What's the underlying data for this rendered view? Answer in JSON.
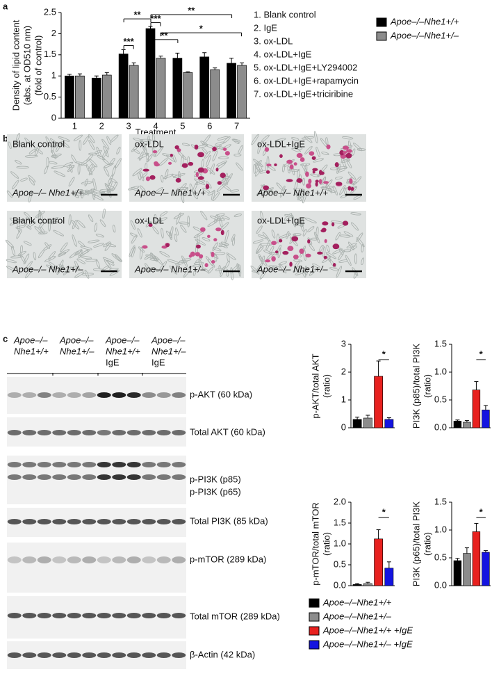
{
  "panel_labels": [
    "a",
    "b",
    "c"
  ],
  "chart_data": [
    {
      "type": "bar",
      "xlabel": "Treatment",
      "ylabel": [
        "Density of lipid content",
        "(abs. at OD510 nm)",
        "(fold of control)"
      ],
      "categories": [
        "1",
        "2",
        "3",
        "4",
        "5",
        "6",
        "7"
      ],
      "ylim": [
        0,
        2.5
      ],
      "yticks": [
        0,
        0.5,
        1,
        1.5,
        2,
        2.5
      ],
      "series": [
        {
          "name": "Apoe–/–Nhe1+/+",
          "color": "#000000",
          "values": [
            1.0,
            0.95,
            1.52,
            2.12,
            1.42,
            1.45,
            1.3
          ],
          "errors": [
            0.04,
            0.05,
            0.1,
            0.05,
            0.12,
            0.1,
            0.12
          ]
        },
        {
          "name": "Apoe–/–Nhe1+/–",
          "color": "#8c8c8c",
          "values": [
            1.0,
            1.02,
            1.25,
            1.42,
            1.08,
            1.15,
            1.25
          ],
          "errors": [
            0.05,
            0.06,
            0.06,
            0.05,
            0.02,
            0.04,
            0.06
          ]
        }
      ],
      "annotations": [
        "**",
        "***",
        "***",
        "**",
        "**",
        "*"
      ]
    },
    {
      "type": "bar",
      "ylabel": [
        "p-AKT/total AKT",
        "(ratio)"
      ],
      "colors": [
        "#000000",
        "#8c8c8c",
        "#e8211f",
        "#1414e0"
      ],
      "values": [
        0.3,
        0.35,
        1.85,
        0.3
      ],
      "errors": [
        0.08,
        0.1,
        0.55,
        0.06
      ],
      "ylim": [
        0,
        3
      ],
      "yticks": [
        0,
        1,
        2,
        3
      ],
      "annotations": [
        "*"
      ]
    },
    {
      "type": "bar",
      "ylabel": [
        "PI3K (p85)/total PI3K",
        "(ratio)"
      ],
      "colors": [
        "#000000",
        "#8c8c8c",
        "#e8211f",
        "#1414e0"
      ],
      "values": [
        0.12,
        0.1,
        0.68,
        0.32
      ],
      "errors": [
        0.02,
        0.03,
        0.15,
        0.08
      ],
      "ylim": [
        0,
        1.5
      ],
      "yticks": [
        {
          "value": 0,
          "label": "0.0"
        },
        0.5,
        {
          "value": 1,
          "label": "1.0"
        },
        1.5
      ],
      "annotations": [
        "*"
      ]
    },
    {
      "type": "bar",
      "ylabel": [
        "p-mTOR/total mTOR",
        "(ratio)"
      ],
      "colors": [
        "#000000",
        "#8c8c8c",
        "#e8211f",
        "#1414e0"
      ],
      "values": [
        0.03,
        0.05,
        1.12,
        0.42
      ],
      "errors": [
        0.02,
        0.03,
        0.22,
        0.15
      ],
      "ylim": [
        0,
        2
      ],
      "yticks": [
        {
          "value": 0,
          "label": "0.0"
        },
        0.5,
        {
          "value": 1,
          "label": "1.0"
        },
        1.5,
        {
          "value": 2,
          "label": "2.0"
        }
      ],
      "annotations": [
        "*"
      ]
    },
    {
      "type": "bar",
      "ylabel": [
        "PI3K (p65)/total PI3K",
        "(ratio)"
      ],
      "colors": [
        "#000000",
        "#8c8c8c",
        "#e8211f",
        "#1414e0"
      ],
      "values": [
        0.45,
        0.58,
        0.97,
        0.6
      ],
      "errors": [
        0.04,
        0.1,
        0.15,
        0.03
      ],
      "ylim": [
        0,
        1.5
      ],
      "yticks": [
        {
          "value": 0,
          "label": "0.0"
        },
        0.5,
        {
          "value": 1,
          "label": "1.0"
        },
        1.5
      ],
      "annotations": [
        "*"
      ]
    }
  ],
  "treatments": [
    "1. Blank control",
    "2. IgE",
    "3. ox-LDL",
    "4. ox-LDL+IgE",
    "5. ox-LDL+IgE+LY294002",
    "6. ox-LDL+IgE+rapamycin",
    "7. ox-LDL+IgE+triciribine"
  ],
  "legend_c": [
    {
      "name": "Apoe–/–Nhe1+/+",
      "color": "#000000"
    },
    {
      "name": "Apoe–/–Nhe1+/–",
      "color": "#8c8c8c"
    },
    {
      "name": "Apoe–/–Nhe1+/+ +IgE",
      "color": "#e8211f"
    },
    {
      "name": "Apoe–/–Nhe1+/– +IgE",
      "color": "#1414e0"
    }
  ],
  "micrographs": [
    {
      "caption": "Blank control",
      "genotype": "Apoe–/– Nhe1+/+"
    },
    {
      "caption": "ox-LDL",
      "genotype": "Apoe–/– Nhe1+/+"
    },
    {
      "caption": "ox-LDL+IgE",
      "genotype": "Apoe–/– Nhe1+/+"
    },
    {
      "caption": "Blank control",
      "genotype": "Apoe–/– Nhe1+/–"
    },
    {
      "caption": "ox-LDL",
      "genotype": "Apoe–/– Nhe1+/–"
    },
    {
      "caption": "ox-LDL+IgE",
      "genotype": "Apoe–/– Nhe1+/–"
    }
  ],
  "blot": {
    "columns": [
      [
        "Apoe–/–",
        "Nhe1+/+"
      ],
      [
        "Apoe–/–",
        "Nhe1+/–"
      ],
      [
        "Apoe–/–",
        "Nhe1+/+",
        "IgE"
      ],
      [
        "Apoe–/–",
        "Nhe1+/–",
        "IgE"
      ]
    ],
    "rows": [
      "p-AKT (60 kDa)",
      "Total AKT (60 kDa)",
      "p-PI3K (p85)",
      "p-PI3K (p65)",
      "Total PI3K (85 kDa)",
      "p-mTOR (289 kDa)",
      "Total mTOR (289 kDa)",
      "β-Actin (42 kDa)"
    ]
  }
}
